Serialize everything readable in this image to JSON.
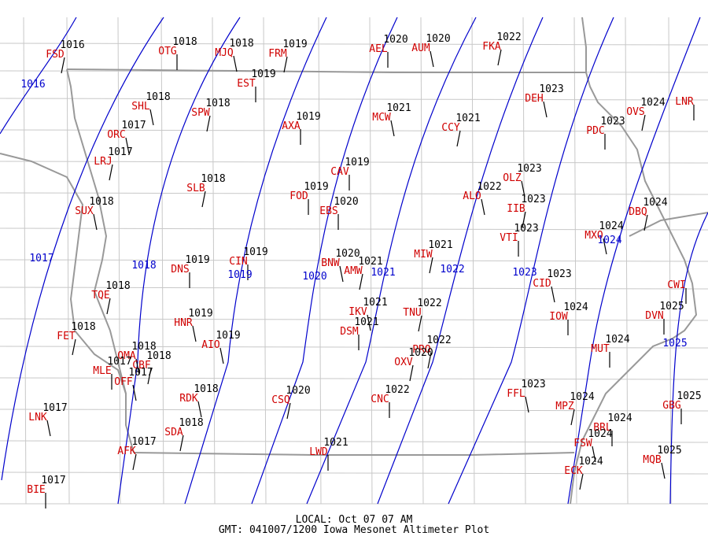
{
  "stations": [
    {
      "id": "FSD",
      "value": 1016
    },
    {
      "id": "OTG",
      "value": 1018
    },
    {
      "id": "MJQ",
      "value": 1018
    },
    {
      "id": "FRM",
      "value": 1019
    },
    {
      "id": "AEL",
      "value": 1020
    },
    {
      "id": "AUM",
      "value": 1020
    },
    {
      "id": "FKA",
      "value": 1022
    },
    {
      "id": "EST",
      "value": 1019
    },
    {
      "id": "DEH",
      "value": 1023
    },
    {
      "id": "OVS",
      "value": 1024
    },
    {
      "id": "LNR"
    },
    {
      "id": "SHL",
      "value": 1018
    },
    {
      "id": "SPW",
      "value": 1018
    },
    {
      "id": "AXA",
      "value": 1019
    },
    {
      "id": "MCW",
      "value": 1021
    },
    {
      "id": "CCY",
      "value": 1021
    },
    {
      "id": "PDC",
      "value": 1023
    },
    {
      "id": "ORC",
      "value": 1017
    },
    {
      "id": "LRJ",
      "value": 1017
    },
    {
      "id": "CAV",
      "value": 1019
    },
    {
      "id": "OLZ",
      "value": 1023
    },
    {
      "id": "SLB",
      "value": 1018
    },
    {
      "id": "FOD",
      "value": 1019
    },
    {
      "id": "ALO",
      "value": 1022
    },
    {
      "id": "IIB",
      "value": 1023
    },
    {
      "id": "EBS",
      "value": 1020
    },
    {
      "id": "SUX",
      "value": 1018
    },
    {
      "id": "DBQ",
      "value": 1024
    },
    {
      "id": "VTI",
      "value": 1023
    },
    {
      "id": "MXO",
      "value": 1024
    },
    {
      "id": "MIW",
      "value": 1021
    },
    {
      "id": "CIN",
      "value": 1019
    },
    {
      "id": "BNW",
      "value": 1020
    },
    {
      "id": "AMW",
      "value": 1021
    },
    {
      "id": "DNS",
      "value": 1019
    },
    {
      "id": "CID",
      "value": 1023
    },
    {
      "id": "TQE",
      "value": 1018
    },
    {
      "id": "CWI"
    },
    {
      "id": "IKV",
      "value": 1021
    },
    {
      "id": "TNU",
      "value": 1022
    },
    {
      "id": "IOW",
      "value": 1024
    },
    {
      "id": "HNR",
      "value": 1019
    },
    {
      "id": "FET",
      "value": 1018
    },
    {
      "id": "DSM",
      "value": 1021
    },
    {
      "id": "AIO",
      "value": 1019
    },
    {
      "id": "PRO",
      "value": 1022
    },
    {
      "id": "MUT",
      "value": 1024
    },
    {
      "id": "OMA",
      "value": 1018
    },
    {
      "id": "CBF",
      "value": 1018
    },
    {
      "id": "MLE",
      "value": 1017
    },
    {
      "id": "OFF",
      "value": 1017
    },
    {
      "id": "OXV",
      "value": 1020
    },
    {
      "id": "DVN",
      "value": 1025
    },
    {
      "id": "RDK",
      "value": 1018
    },
    {
      "id": "CSQ",
      "value": 1020
    },
    {
      "id": "CNC",
      "value": 1022
    },
    {
      "id": "FFL",
      "value": 1023
    },
    {
      "id": "MPZ",
      "value": 1024
    },
    {
      "id": "GBG",
      "value": 1025
    },
    {
      "id": "LNK",
      "value": 1017
    },
    {
      "id": "SDA",
      "value": 1018
    },
    {
      "id": "BRL",
      "value": 1024
    },
    {
      "id": "FSW",
      "value": 1024
    },
    {
      "id": "AFK",
      "value": 1017
    },
    {
      "id": "LWD",
      "value": 1021
    },
    {
      "id": "MQB",
      "value": 1025
    },
    {
      "id": "ECK",
      "value": 1024
    },
    {
      "id": "BIE",
      "value": 1017
    }
  ],
  "isobar_labels": [
    1016,
    1017,
    1018,
    1019,
    1020,
    1021,
    1022,
    1023,
    1024,
    1025
  ],
  "footer": {
    "local": "LOCAL: Oct 07 07 AM",
    "gmt": "GMT: 041007/1200 Iowa Mesonet Altimeter Plot"
  }
}
